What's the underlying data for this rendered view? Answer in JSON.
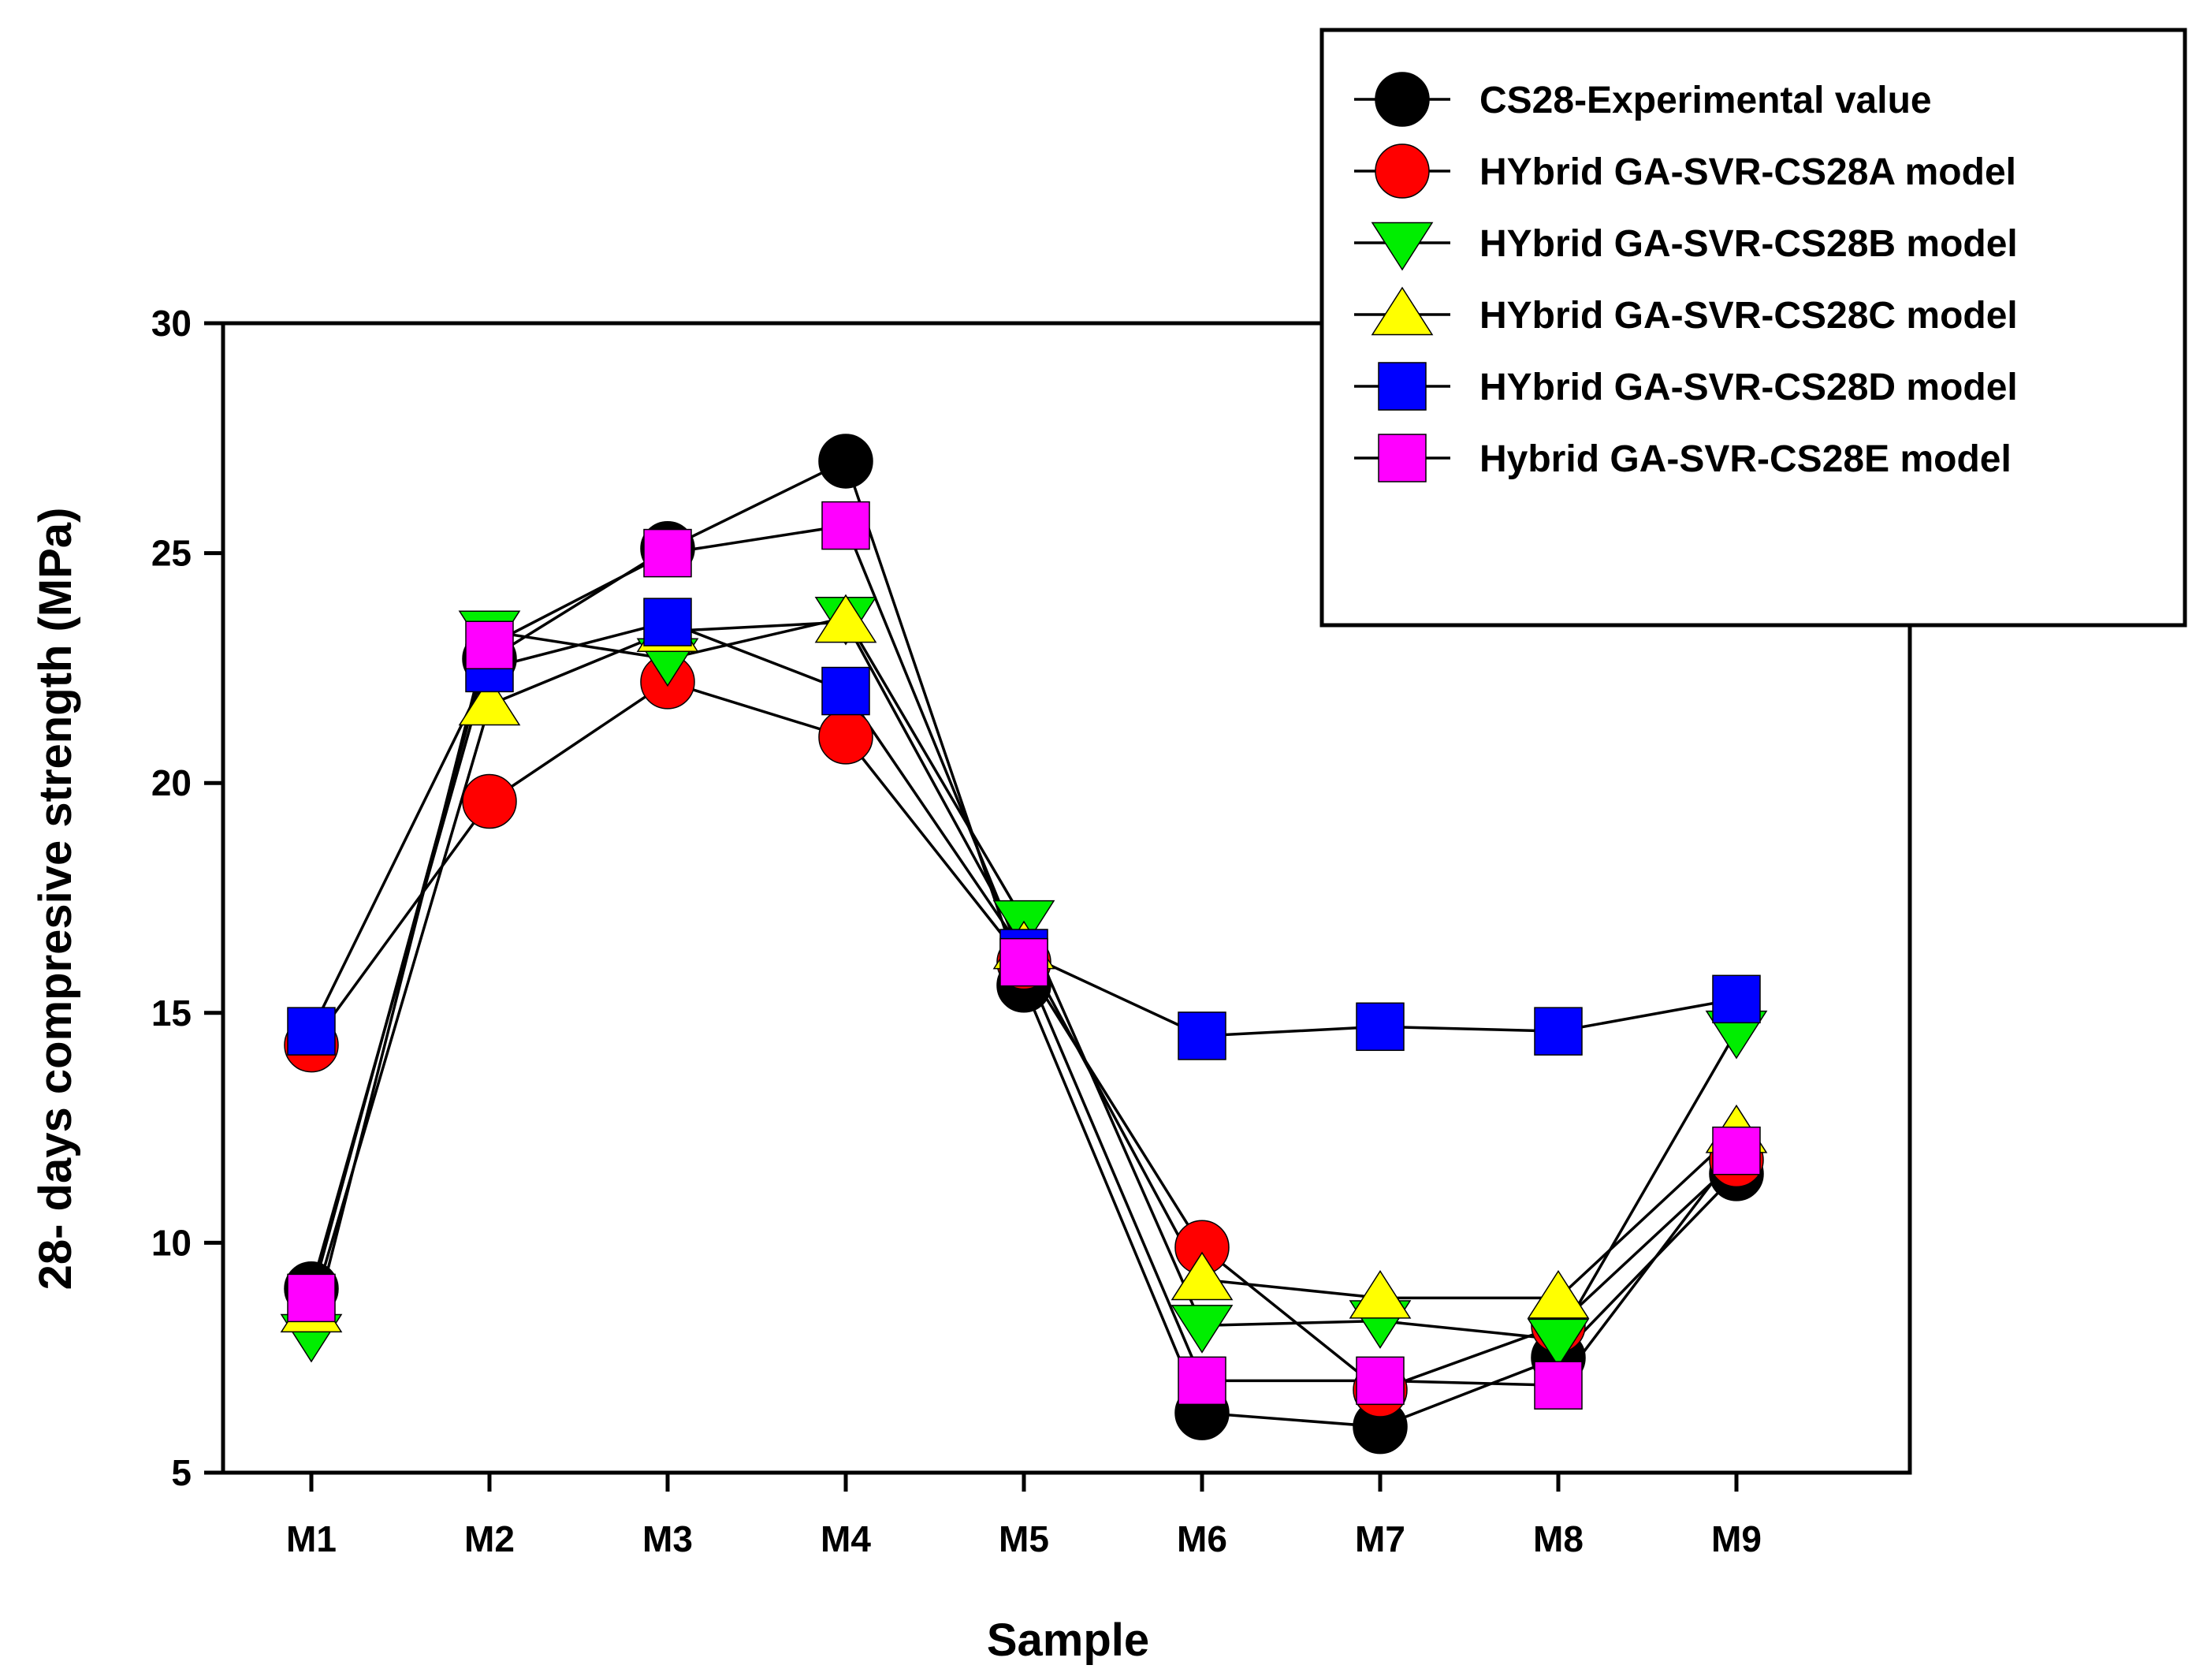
{
  "chart_data": {
    "type": "line",
    "title": "",
    "xlabel": "Sample",
    "ylabel": "28- days compresive strength (MPa)",
    "ylim": [
      5,
      30
    ],
    "yticks": [
      5,
      10,
      15,
      20,
      25,
      30
    ],
    "grid": false,
    "legend_position": "top-right",
    "categories": [
      "M1",
      "M2",
      "M3",
      "M4",
      "M5",
      "M6",
      "M7",
      "M8",
      "M9"
    ],
    "series": [
      {
        "name": "CS28-Experimental value",
        "marker": "circle",
        "color": "#000000",
        "values": [
          9.0,
          22.7,
          25.1,
          27.0,
          15.6,
          6.3,
          6.0,
          7.5,
          11.5
        ]
      },
      {
        "name": "HYbrid GA-SVR-CS28A model",
        "marker": "circle",
        "color": "#ff0000",
        "values": [
          14.3,
          19.6,
          22.2,
          21.0,
          16.1,
          9.9,
          6.8,
          8.2,
          11.8
        ]
      },
      {
        "name": "HYbrid GA-SVR-CS28B model",
        "marker": "triangle-down",
        "color": "#00ee00",
        "values": [
          8.0,
          23.3,
          22.7,
          23.6,
          17.0,
          8.2,
          8.3,
          7.9,
          14.6
        ]
      },
      {
        "name": "HYbrid GA-SVR-CS28C model",
        "marker": "triangle-up",
        "color": "#ffff00",
        "values": [
          8.5,
          21.7,
          23.3,
          23.5,
          16.4,
          9.2,
          8.8,
          8.8,
          12.4
        ]
      },
      {
        "name": "HYbrid GA-SVR-CS28D model",
        "marker": "square",
        "color": "#0000ff",
        "values": [
          14.6,
          22.5,
          23.5,
          22.0,
          16.3,
          14.5,
          14.7,
          14.6,
          15.3
        ]
      },
      {
        "name": "Hybrid GA-SVR-CS28E model",
        "marker": "square",
        "color": "#ff00ff",
        "values": [
          8.8,
          23.0,
          25.0,
          25.6,
          16.1,
          7.0,
          7.0,
          6.9,
          12.0
        ]
      }
    ]
  }
}
